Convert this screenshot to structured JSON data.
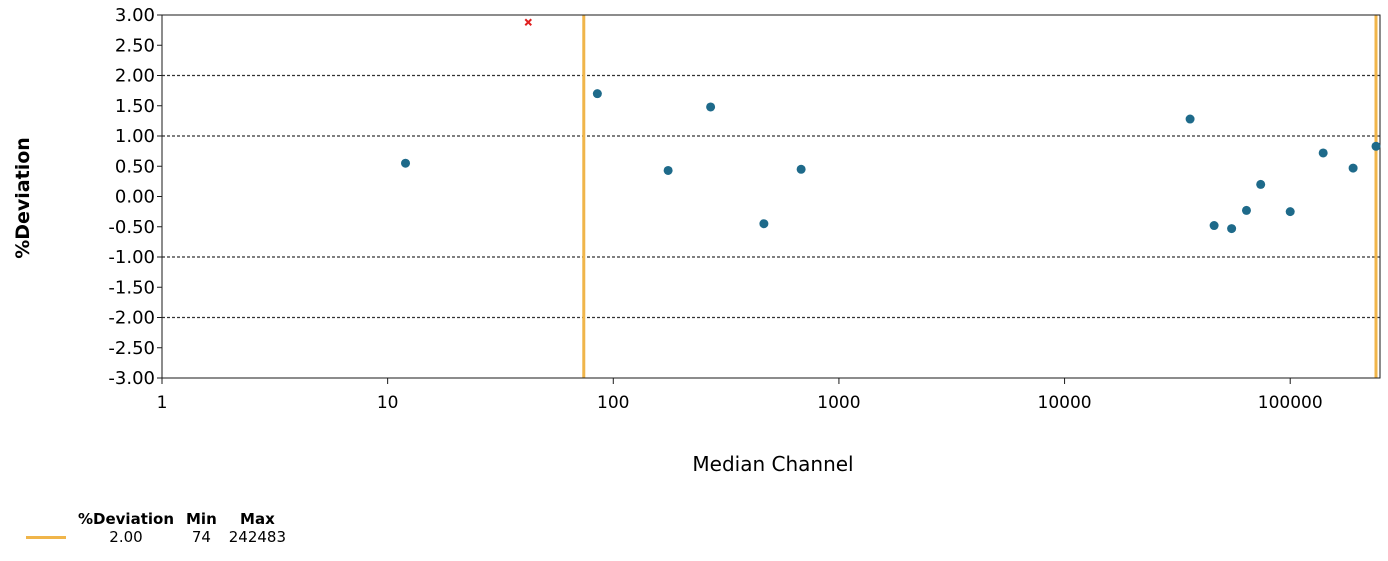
{
  "chart_data": {
    "type": "scatter",
    "xlabel": "Median Channel",
    "ylabel": "%Deviation",
    "x_scale": "log",
    "xlim": [
      1,
      250000
    ],
    "ylim": [
      -3,
      3
    ],
    "x_ticks": [
      "1",
      "10",
      "100",
      "1000",
      "10000",
      "100000"
    ],
    "y_ticks": [
      "3.00",
      "2.50",
      "2.00",
      "1.50",
      "1.00",
      "0.50",
      "0.00",
      "-0.50",
      "-1.00",
      "-1.50",
      "-2.00",
      "-2.50",
      "-3.00"
    ],
    "reference_lines_y": [
      2,
      1,
      -1,
      -2
    ],
    "range_lines_x": [
      74,
      242483
    ],
    "colors": {
      "point": "#1e6a8a",
      "outlier": "#e02020",
      "range_line": "#f0b54a",
      "axis": "#1a1a1a"
    },
    "series": [
      {
        "marker": "dot",
        "points": [
          {
            "x": 12,
            "y": 0.55
          },
          {
            "x": 85,
            "y": 1.7
          },
          {
            "x": 175,
            "y": 0.43
          },
          {
            "x": 270,
            "y": 1.48
          },
          {
            "x": 465,
            "y": -0.45
          },
          {
            "x": 680,
            "y": 0.45
          },
          {
            "x": 36000,
            "y": 1.28
          },
          {
            "x": 46000,
            "y": -0.48
          },
          {
            "x": 55000,
            "y": -0.53
          },
          {
            "x": 64000,
            "y": -0.23
          },
          {
            "x": 74000,
            "y": 0.2
          },
          {
            "x": 100000,
            "y": -0.25
          },
          {
            "x": 140000,
            "y": 0.72
          },
          {
            "x": 190000,
            "y": 0.47
          },
          {
            "x": 250000,
            "y": 0.83
          }
        ]
      },
      {
        "marker": "x",
        "points": [
          {
            "x": 42,
            "y": 2.88
          }
        ]
      }
    ]
  },
  "legend": {
    "headers": [
      "%Deviation",
      "Min",
      "Max"
    ],
    "rows": [
      {
        "deviation": "2.00",
        "min": "74",
        "max": "242483"
      }
    ]
  }
}
